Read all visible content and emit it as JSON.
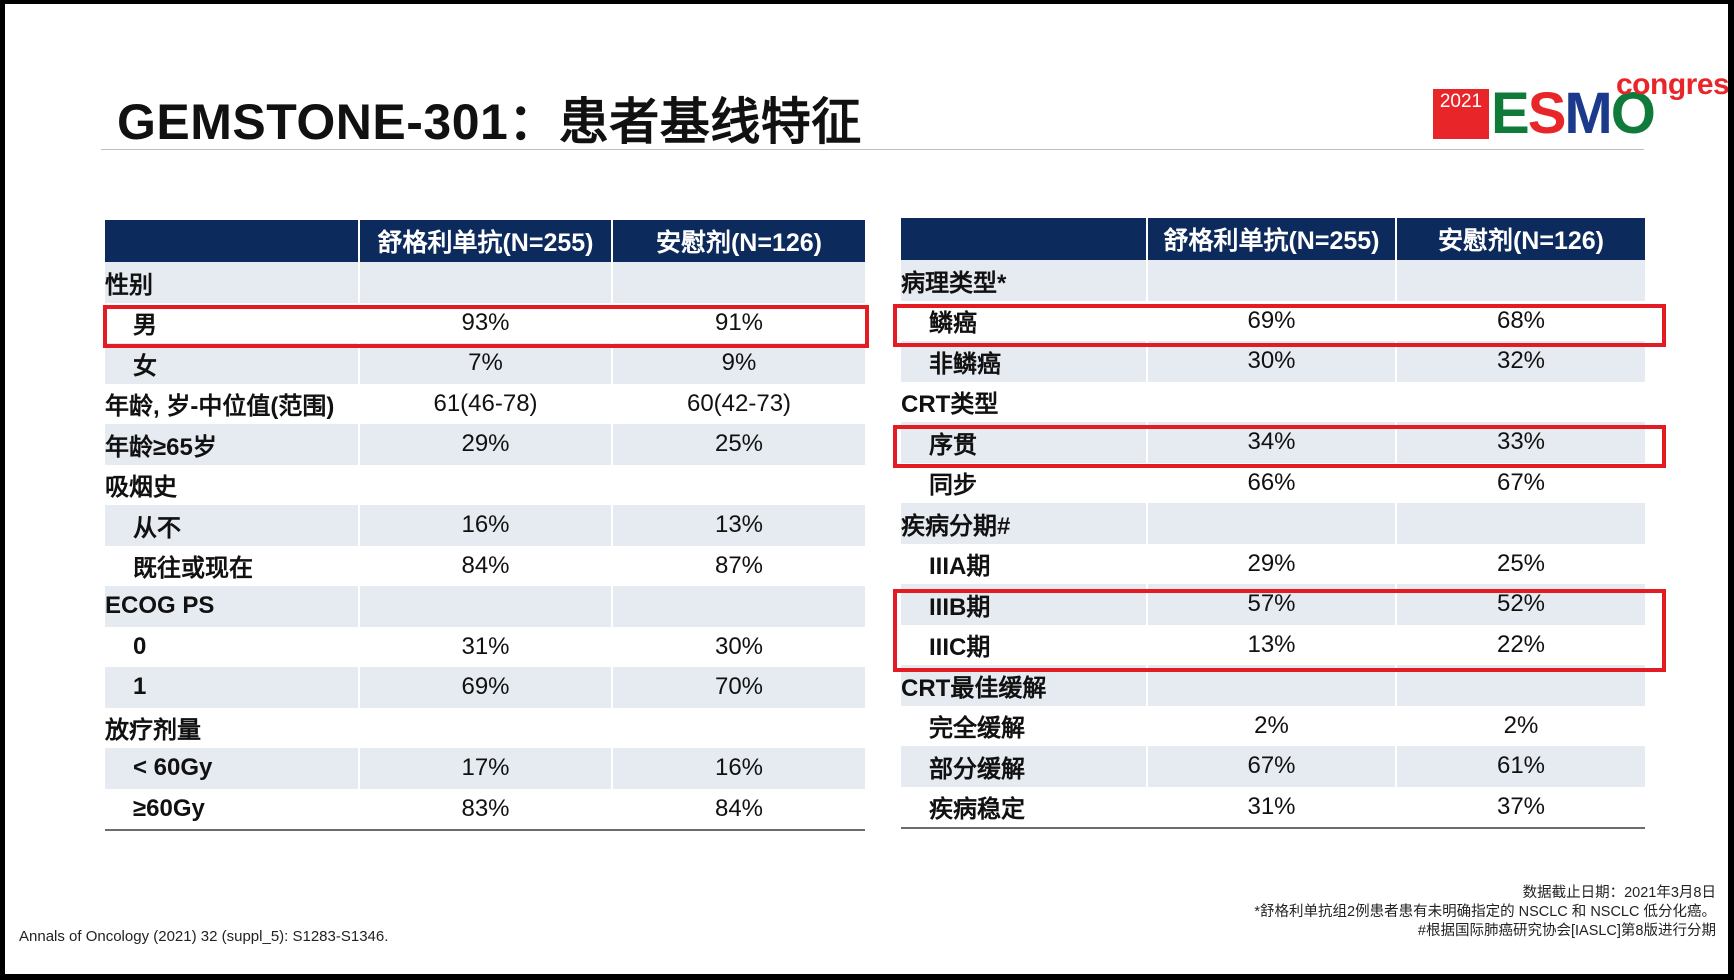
{
  "title": "GEMSTONE-301：患者基线特征",
  "logo": {
    "year": "2021",
    "e": "E",
    "s": "S",
    "m": "M",
    "o": "O",
    "congress": "congress"
  },
  "columns": {
    "col1": "舒格利单抗(N=255)",
    "col2": "安慰剂(N=126)"
  },
  "left_table": {
    "rows": [
      {
        "label": "性别",
        "v1": "",
        "v2": ""
      },
      {
        "label": "男",
        "v1": "93%",
        "v2": "91%"
      },
      {
        "label": "女",
        "v1": "7%",
        "v2": "9%"
      },
      {
        "label": "年龄, 岁-中位值(范围)",
        "v1": "61(46-78)",
        "v2": "60(42-73)"
      },
      {
        "label": "年龄≥65岁",
        "v1": "29%",
        "v2": "25%"
      },
      {
        "label": "吸烟史",
        "v1": "",
        "v2": ""
      },
      {
        "label": "从不",
        "v1": "16%",
        "v2": "13%"
      },
      {
        "label": "既往或现在",
        "v1": "84%",
        "v2": "87%"
      },
      {
        "label": "ECOG PS",
        "v1": "",
        "v2": ""
      },
      {
        "label": "0",
        "v1": "31%",
        "v2": "30%"
      },
      {
        "label": "1",
        "v1": "69%",
        "v2": "70%"
      },
      {
        "label": "放疗剂量",
        "v1": "",
        "v2": ""
      },
      {
        "label": "< 60Gy",
        "v1": "17%",
        "v2": "16%"
      },
      {
        "label": "≥60Gy",
        "v1": "83%",
        "v2": "84%"
      }
    ]
  },
  "right_table": {
    "rows": [
      {
        "label": "病理类型*",
        "v1": "",
        "v2": ""
      },
      {
        "label": "鳞癌",
        "v1": "69%",
        "v2": "68%"
      },
      {
        "label": "非鳞癌",
        "v1": "30%",
        "v2": "32%"
      },
      {
        "label": "CRT类型",
        "v1": "",
        "v2": ""
      },
      {
        "label": "序贯",
        "v1": "34%",
        "v2": "33%"
      },
      {
        "label": "同步",
        "v1": "66%",
        "v2": "67%"
      },
      {
        "label": "疾病分期#",
        "v1": "",
        "v2": ""
      },
      {
        "label": "IIIA期",
        "v1": "29%",
        "v2": "25%"
      },
      {
        "label": "IIIB期",
        "v1": "57%",
        "v2": "52%"
      },
      {
        "label": "IIIC期",
        "v1": "13%",
        "v2": "22%"
      },
      {
        "label": "CRT最佳缓解",
        "v1": "",
        "v2": ""
      },
      {
        "label": "完全缓解",
        "v1": "2%",
        "v2": "2%"
      },
      {
        "label": "部分缓解",
        "v1": "67%",
        "v2": "61%"
      },
      {
        "label": "疾病稳定",
        "v1": "31%",
        "v2": "37%"
      }
    ]
  },
  "highlight_color": "#e31b23",
  "header_color": "#0d2a5c",
  "footer": {
    "citation": "Annals of Oncology (2021) 32 (suppl_5): S1283-S1346.",
    "note1": "数据截止日期：2021年3月8日",
    "note2": "*舒格利单抗组2例患者患有未明确指定的 NSCLC 和 NSCLC 低分化癌。",
    "note3": "#根据国际肺癌研究协会[IASLC]第8版进行分期"
  }
}
